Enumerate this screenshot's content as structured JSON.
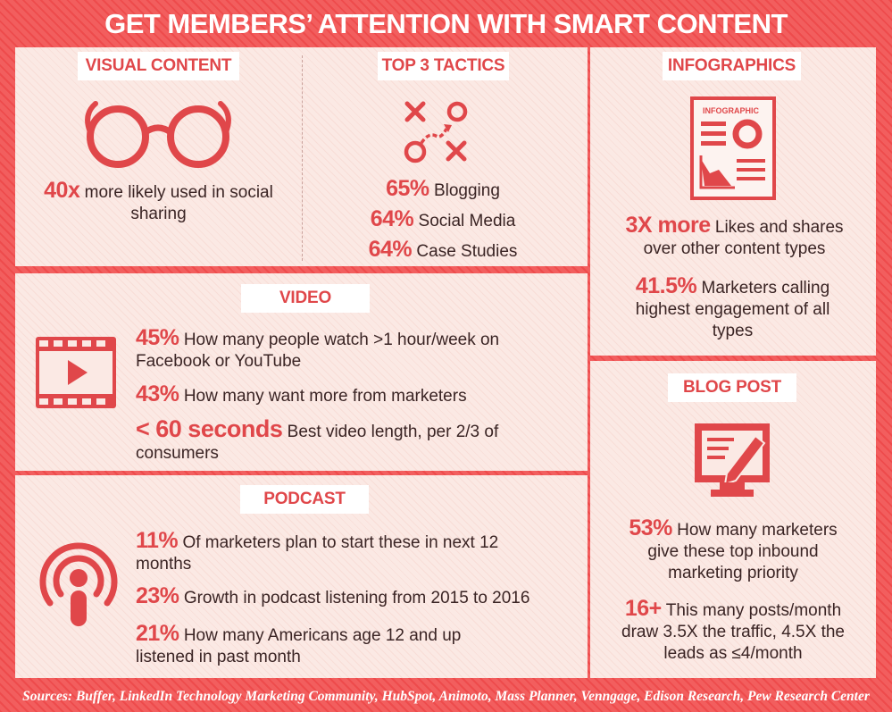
{
  "title": "GET MEMBERS’ ATTENTION WITH SMART CONTENT",
  "colors": {
    "accent": "#e0474a",
    "background": "#ef5253",
    "panel": "#fbe9e4"
  },
  "visual_content": {
    "label": "VISUAL CONTENT",
    "icon": "glasses-icon",
    "stat_value": "40x",
    "stat_text": "more likely used in social sharing"
  },
  "top_tactics": {
    "label": "TOP 3 TACTICS",
    "icon": "tactics-icon",
    "items": [
      {
        "value": "65%",
        "text": "Blogging"
      },
      {
        "value": "64%",
        "text": "Social Media"
      },
      {
        "value": "64%",
        "text": "Case Studies"
      }
    ]
  },
  "infographics": {
    "label": "INFOGRAPHICS",
    "icon": "infographic-document-icon",
    "icon_text": "INFOGRAPHIC",
    "stats": [
      {
        "value": "3X more",
        "text": "Likes and shares over other content types"
      },
      {
        "value": "41.5%",
        "text": "Marketers calling highest engagement of all types"
      }
    ]
  },
  "video": {
    "label": "VIDEO",
    "icon": "film-play-icon",
    "stats": [
      {
        "value": "45%",
        "text": "How many people watch >1 hour/week on Facebook or YouTube"
      },
      {
        "value": "43%",
        "text": "How many want more from marketers"
      },
      {
        "value": "< 60 seconds",
        "text": "Best video length, per 2/3 of consumers"
      }
    ]
  },
  "podcast": {
    "label": "PODCAST",
    "icon": "podcast-icon",
    "stats": [
      {
        "value": "11%",
        "text": "Of marketers plan to start these in next 12 months"
      },
      {
        "value": "23%",
        "text": "Growth in podcast listening from 2015 to 2016"
      },
      {
        "value": "21%",
        "text": "How many Americans age 12 and up listened in past month"
      }
    ]
  },
  "blog_post": {
    "label": "BLOG POST",
    "icon": "blog-edit-icon",
    "stats": [
      {
        "value": "53%",
        "text": "How many marketers give these top inbound marketing priority"
      },
      {
        "value": "16+",
        "text": "This many posts/month draw 3.5X the traffic, 4.5X the leads as ≤4/month"
      }
    ]
  },
  "sources": "Sources: Buffer, LinkedIn Technology Marketing Community, HubSpot, Animoto, Mass Planner, Venngage, Edison Research, Pew Research Center"
}
